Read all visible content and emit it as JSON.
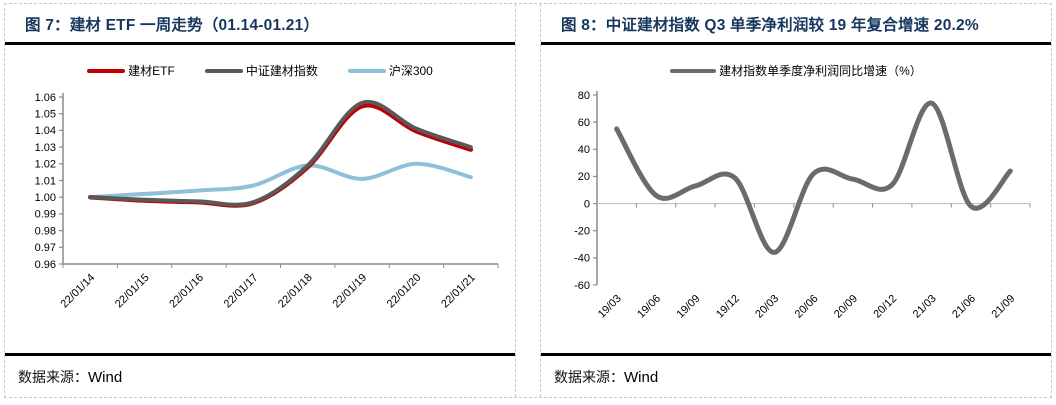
{
  "figures": [
    {
      "title": "图 7：建材 ETF 一周走势（01.14-01.21）",
      "source": {
        "label": "数据来源：",
        "value": "Wind"
      }
    },
    {
      "title": "图 8：中证建材指数 Q3 单季净利润较 19 年复合增速 20.2%",
      "source": {
        "label": "数据来源：",
        "value": "Wind"
      }
    }
  ],
  "colors": {
    "title_navy": "#17365d",
    "axis_gray": "#8c8c8c",
    "zero_line_gray": "#b9b9b9",
    "etf_red": "#c00000",
    "index_gray": "#595959",
    "hs300_blue": "#8fc0d8",
    "profit_gray": "#6b6b6b"
  },
  "chart_data": [
    {
      "type": "line",
      "title": "建材 ETF 一周走势（01.14-01.21）",
      "categories": [
        "22/01/14",
        "22/01/15",
        "22/01/16",
        "22/01/17",
        "22/01/18",
        "22/01/19",
        "22/01/20",
        "22/01/21"
      ],
      "series": [
        {
          "name": "建材ETF",
          "color": "#c00000",
          "width": 4.5,
          "values": [
            1.0,
            0.998,
            0.997,
            0.9965,
            1.018,
            1.0545,
            1.0395,
            1.0285
          ]
        },
        {
          "name": "中证建材指数",
          "color": "#595959",
          "width": 4,
          "values": [
            1.0,
            0.9985,
            0.9975,
            0.997,
            1.019,
            1.0565,
            1.041,
            1.03
          ]
        },
        {
          "name": "沪深300",
          "color": "#8fc0d8",
          "width": 4,
          "values": [
            1.0,
            1.002,
            1.004,
            1.007,
            1.019,
            1.011,
            1.02,
            1.012
          ]
        }
      ],
      "ylim": [
        0.96,
        1.06
      ],
      "ytick_step": 0.01,
      "ytick_decimals": 2,
      "x_axis": "bottom",
      "draw_order": [
        2,
        0,
        1
      ],
      "legend_position": "top",
      "grid": false
    },
    {
      "type": "line",
      "title": "中证建材指数单季度净利润同比增速",
      "categories": [
        "19/03",
        "19/06",
        "19/09",
        "19/12",
        "20/03",
        "20/06",
        "20/09",
        "20/12",
        "21/03",
        "21/06",
        "21/09"
      ],
      "series": [
        {
          "name": "建材指数单季度净利润同比增速（%）",
          "color": "#6b6b6b",
          "width": 5,
          "values": [
            55,
            6,
            13,
            19,
            -36,
            22,
            18,
            14,
            74,
            -2,
            24
          ]
        }
      ],
      "ylim": [
        -60,
        80
      ],
      "ytick_step": 20,
      "ytick_decimals": 0,
      "x_axis": "zero",
      "legend_position": "top",
      "grid": false
    }
  ]
}
